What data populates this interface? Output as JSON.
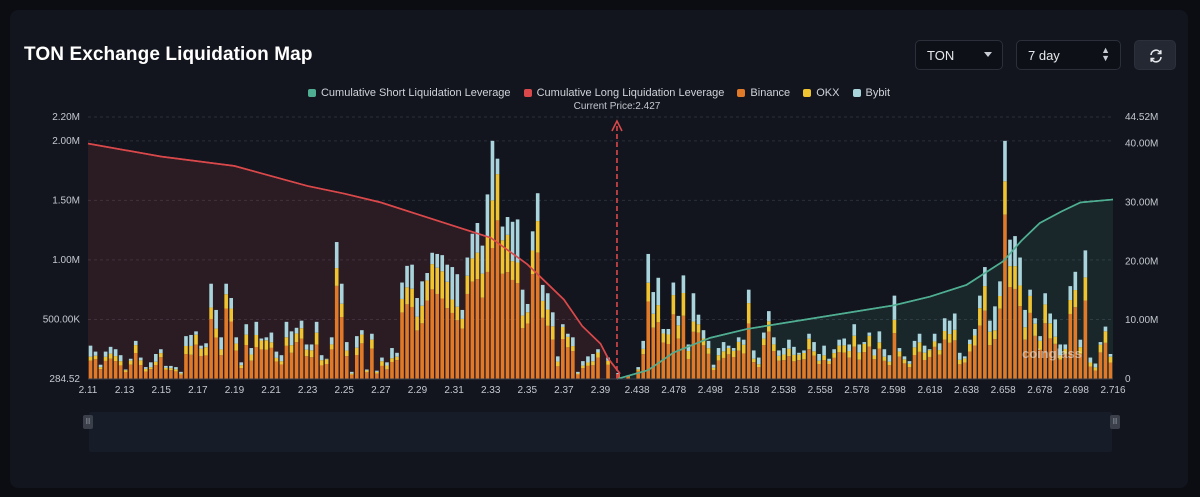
{
  "header": {
    "title": "TON Exchange Liquidation Map"
  },
  "controls": {
    "coin_value": "TON",
    "range_value": "7 day",
    "refresh_icon": "refresh-icon"
  },
  "watermark": "coinglass",
  "colors": {
    "short": "#4fae92",
    "long": "#d9484a",
    "binance": "#e07a28",
    "okx": "#f0c430",
    "bybit": "#a9d4dc"
  },
  "chart_data": {
    "type": "bar",
    "current_price_label": "Current Price:2.427",
    "current_price": 2.427,
    "legend": [
      {
        "label": "Cumulative Short Liquidation Leverage",
        "color": "#4fae92"
      },
      {
        "label": "Cumulative Long Liquidation Leverage",
        "color": "#d9484a"
      },
      {
        "label": "Binance",
        "color": "#e07a28"
      },
      {
        "label": "OKX",
        "color": "#f0c430"
      },
      {
        "label": "Bybit",
        "color": "#a9d4dc"
      }
    ],
    "y_left": {
      "ticks": [
        "2.20M",
        "2.00M",
        "1.50M",
        "1.00M",
        "500.00K",
        "284.52"
      ],
      "tick_values": [
        2200000,
        2000000,
        1500000,
        1000000,
        500000,
        284.52
      ],
      "range": [
        0,
        2200000
      ]
    },
    "y_right": {
      "ticks": [
        "44.52M",
        "40.00M",
        "30.00M",
        "20.00M",
        "10.00M",
        "0"
      ],
      "tick_values": [
        44520000,
        40000000,
        30000000,
        20000000,
        10000000,
        0
      ],
      "range": [
        0,
        44520000
      ]
    },
    "x_tick_labels": [
      "2.11",
      "2.13",
      "2.15",
      "2.17",
      "2.19",
      "2.21",
      "2.23",
      "2.25",
      "2.27",
      "2.29",
      "2.31",
      "2.33",
      "2.35",
      "2.37",
      "2.39",
      "2.438",
      "2.478",
      "2.498",
      "2.518",
      "2.538",
      "2.558",
      "2.578",
      "2.598",
      "2.618",
      "2.638",
      "2.658",
      "2.678",
      "2.698",
      "2.716"
    ],
    "x_range": [
      2.11,
      2.716
    ],
    "bars_total": [
      0.28,
      0.23,
      0.12,
      0.23,
      0.27,
      0.25,
      0.2,
      0.08,
      0.17,
      0.32,
      0.18,
      0.1,
      0.14,
      0.21,
      0.25,
      0.11,
      0.11,
      0.1,
      0.06,
      0.36,
      0.37,
      0.4,
      0.28,
      0.3,
      0.8,
      0.58,
      0.35,
      0.8,
      0.68,
      0.35,
      0.14,
      0.46,
      0.26,
      0.48,
      0.34,
      0.35,
      0.39,
      0.23,
      0.2,
      0.48,
      0.4,
      0.43,
      0.49,
      0.29,
      0.29,
      0.48,
      0.2,
      0.17,
      0.35,
      1.15,
      0.8,
      0.31,
      0.06,
      0.36,
      0.41,
      0.08,
      0.38,
      0.07,
      0.18,
      0.14,
      0.26,
      0.22,
      0.81,
      0.95,
      0.96,
      0.68,
      0.82,
      0.89,
      1.06,
      1.05,
      1.04,
      0.96,
      0.94,
      0.88,
      0.58,
      1.02,
      1.22,
      1.31,
      1.12,
      1.55,
      2.0,
      1.85,
      1.28,
      1.36,
      1.32,
      1.34,
      0.75,
      0.63,
      1.24,
      1.56,
      0.79,
      0.72,
      0.56,
      0.19,
      0.46,
      0.38,
      0.35,
      0.06,
      0.15,
      0.19,
      0.21,
      0.25,
      0.0,
      0.18,
      0.0,
      0.05,
      0.0,
      0.03,
      0.0,
      0.1,
      0.32,
      1.05,
      0.73,
      0.85,
      0.42,
      0.42,
      0.81,
      0.53,
      0.87,
      0.29,
      0.72,
      0.54,
      0.41,
      0.32,
      0.12,
      0.26,
      0.31,
      0.28,
      0.26,
      0.35,
      0.33,
      0.75,
      0.24,
      0.18,
      0.39,
      0.57,
      0.35,
      0.24,
      0.26,
      0.33,
      0.27,
      0.22,
      0.24,
      0.38,
      0.31,
      0.21,
      0.28,
      0.17,
      0.25,
      0.33,
      0.34,
      0.29,
      0.46,
      0.29,
      0.31,
      0.39,
      0.25,
      0.4,
      0.25,
      0.2,
      0.7,
      0.26,
      0.19,
      0.15,
      0.32,
      0.38,
      0.28,
      0.25,
      0.38,
      0.3,
      0.51,
      0.49,
      0.55,
      0.22,
      0.19,
      0.33,
      0.42,
      0.7,
      0.94,
      0.49,
      0.61,
      0.82,
      2.0,
      1.17,
      1.2,
      1.02,
      0.58,
      0.75,
      0.51,
      0.36,
      0.72,
      0.55,
      0.5,
      0.29,
      0.29,
      0.78,
      0.9,
      0.33,
      1.08,
      0.18,
      0.13,
      0.31,
      0.44,
      0.21
    ],
    "long_cumulative_leverage_M": [
      40.0,
      37.8,
      36.2,
      34.5,
      32.8,
      31.5,
      30.0,
      28.0,
      26.0,
      24.0,
      19.5,
      13.5,
      9.0,
      6.0,
      3.5,
      1.0,
      0.0
    ],
    "long_curve_x": [
      2.11,
      2.15,
      2.19,
      2.21,
      2.23,
      2.25,
      2.27,
      2.29,
      2.31,
      2.33,
      2.35,
      2.37,
      2.38,
      2.39,
      2.4,
      2.415,
      2.427
    ],
    "short_cumulative_leverage_M": [
      0.0,
      1.5,
      4.5,
      7.0,
      8.5,
      9.5,
      10.5,
      11.5,
      12.5,
      14.0,
      16.0,
      18.0,
      20.0,
      23.5,
      26.5,
      28.5,
      30.0,
      30.5
    ],
    "short_curve_x": [
      2.427,
      2.45,
      2.478,
      2.498,
      2.518,
      2.538,
      2.558,
      2.578,
      2.598,
      2.618,
      2.638,
      2.648,
      2.658,
      2.668,
      2.678,
      2.69,
      2.7,
      2.716
    ]
  }
}
